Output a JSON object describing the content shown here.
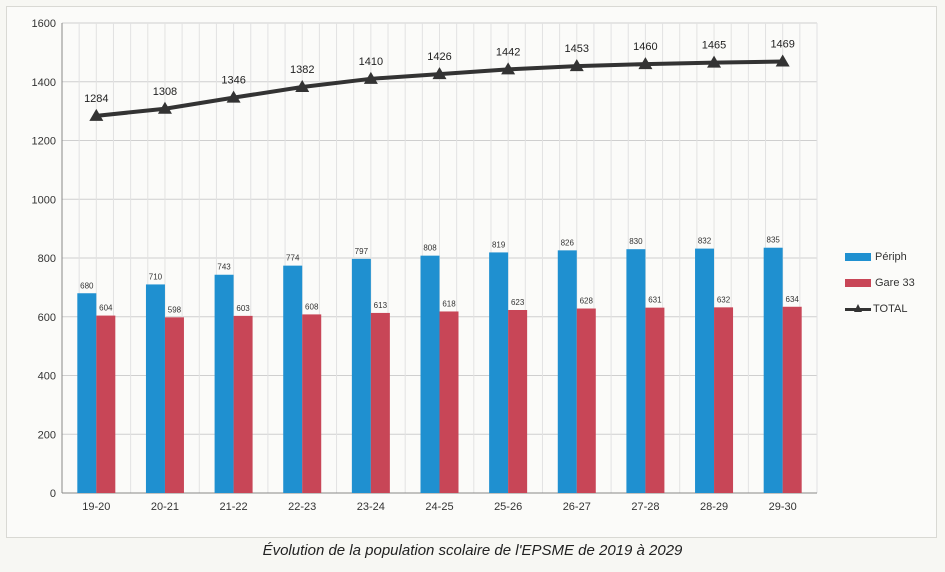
{
  "chart_data": {
    "type": "bar",
    "title": "",
    "xlabel": "",
    "ylabel": "",
    "ylim": [
      0,
      1600
    ],
    "yticks": [
      0,
      200,
      400,
      600,
      800,
      1000,
      1200,
      1400,
      1600
    ],
    "grid": true,
    "legend_position": "right",
    "categories": [
      "19-20",
      "20-21",
      "21-22",
      "22-23",
      "23-24",
      "24-25",
      "25-26",
      "26-27",
      "27-28",
      "28-29",
      "29-30"
    ],
    "series": [
      {
        "name": "Périph",
        "kind": "bar",
        "color": "#1f90d0",
        "values": [
          680,
          710,
          743,
          774,
          797,
          808,
          819,
          826,
          830,
          832,
          835
        ]
      },
      {
        "name": "Gare 33",
        "kind": "bar",
        "color": "#c84657",
        "values": [
          604,
          598,
          603,
          608,
          613,
          618,
          623,
          628,
          631,
          632,
          634
        ]
      },
      {
        "name": "TOTAL",
        "kind": "line",
        "color": "#333333",
        "values": [
          1284,
          1308,
          1346,
          1382,
          1410,
          1426,
          1442,
          1453,
          1460,
          1465,
          1469
        ]
      }
    ]
  },
  "caption": "Évolution de la population scolaire de l'EPSME de 2019 à 2029"
}
